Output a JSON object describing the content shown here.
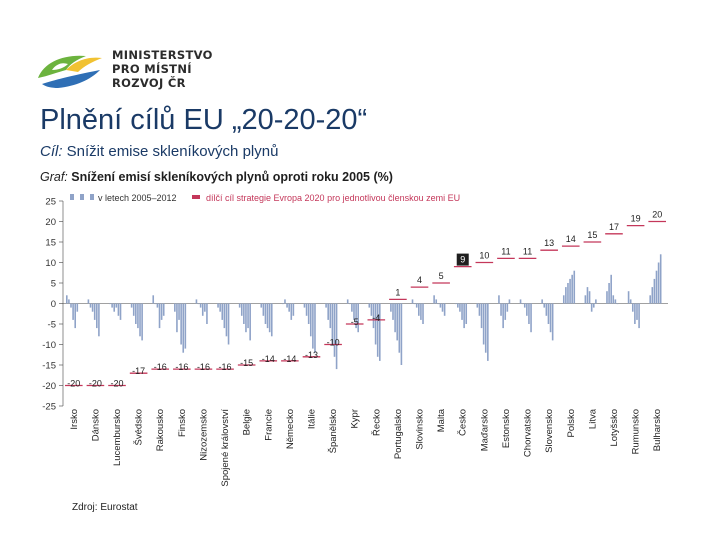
{
  "header": {
    "ministry_lines": [
      "MINISTERSTVO",
      "PRO MÍSTNÍ",
      "ROZVOJ ČR"
    ],
    "title": "Plnění cílů EU „20-20-20“",
    "subtitle_label": "Cíl:",
    "subtitle_text": " Snížit emise skleníkových plynů",
    "graf_label": "Graf:",
    "graf_text": " Snížení emisí skleníkových plynů oproti roku 2005 (%)"
  },
  "footer": {
    "source": "Zdroj: Eurostat"
  },
  "colors": {
    "title": "#1a3a66",
    "bars_actual": "#8fa3c8",
    "bars_target": "#c4375a",
    "axis": "#444444"
  },
  "chart_data": {
    "type": "bar",
    "legend": [
      {
        "name": "v letech 2005–2012"
      },
      {
        "name": "dílčí cíl strategie Evropa 2020 pro jednotlivou členskou zemi EU"
      }
    ],
    "ylim": [
      -25,
      25
    ],
    "yticks": [
      25,
      20,
      15,
      10,
      5,
      0,
      -5,
      -10,
      -15,
      -20,
      -25
    ],
    "categories": [
      "Irsko",
      "Dánsko",
      "Lucembursko",
      "Švédsko",
      "Rakousko",
      "Finsko",
      "Nizozemsko",
      "Spojené království",
      "Belgie",
      "Francie",
      "Německo",
      "Itálie",
      "Španělsko",
      "Kypr",
      "Řecko",
      "Portugalsko",
      "Slovinsko",
      "Malta",
      "Česko",
      "Maďarsko",
      "Estonsko",
      "Chorvatsko",
      "Slovensko",
      "Polsko",
      "Litva",
      "Lotyšsko",
      "Rumunsko",
      "Bulharsko"
    ],
    "series": [
      {
        "name": "dílčí cíl strategie Evropa 2020 pro jednotlivou členskou zemi EU",
        "values": [
          -20,
          -20,
          -20,
          -17,
          -16,
          -16,
          -16,
          -16,
          -15,
          -14,
          -14,
          -13,
          -10,
          -5,
          -4,
          1,
          4,
          5,
          9,
          10,
          11,
          11,
          13,
          14,
          15,
          17,
          19,
          20
        ],
        "labels": [
          "-20",
          "-20",
          "-20",
          "-17",
          "-16",
          "-16",
          "-16",
          "-16",
          "-15",
          "-14",
          "-14",
          "-13",
          "-10",
          "-5",
          "-4",
          "1",
          "4",
          "5",
          "9",
          "10",
          "11",
          "11",
          "13",
          "14",
          "15",
          "17",
          "19",
          "20"
        ]
      },
      {
        "name": "v letech 2005–2012",
        "values": [
          [
            2,
            1,
            -1,
            -4,
            -6,
            -2
          ],
          [
            1,
            -1,
            -2,
            -4,
            -6,
            -8
          ],
          [
            0,
            -1,
            -2,
            -1,
            -3,
            -4
          ],
          [
            -1,
            -3,
            -5,
            -6,
            -8,
            -9
          ],
          [
            2,
            0,
            -1,
            -6,
            -4,
            -3
          ],
          [
            -2,
            -7,
            -4,
            -10,
            -12,
            -11
          ],
          [
            1,
            0,
            -1,
            -3,
            -2,
            -5
          ],
          [
            -1,
            -2,
            -4,
            -6,
            -8,
            -10
          ],
          [
            -1,
            -3,
            -5,
            -7,
            -6,
            -9
          ],
          [
            -1,
            -3,
            -5,
            -6,
            -7,
            -8
          ],
          [
            0,
            1,
            -1,
            -2,
            -4,
            -3
          ],
          [
            -1,
            -3,
            -5,
            -8,
            -11,
            -12
          ],
          [
            -1,
            -4,
            -6,
            -10,
            -13,
            -16
          ],
          [
            1,
            0,
            -2,
            -4,
            -6,
            -7
          ],
          [
            -1,
            -3,
            -6,
            -10,
            -13,
            -14
          ],
          [
            -2,
            -4,
            -7,
            -9,
            -12,
            -15
          ],
          [
            1,
            0,
            -1,
            -3,
            -4,
            -5
          ],
          [
            2,
            1,
            0,
            -1,
            -2,
            -3
          ],
          [
            0,
            -1,
            -2,
            -4,
            -6,
            -5
          ],
          [
            -1,
            -3,
            -6,
            -10,
            -12,
            -14
          ],
          [
            2,
            -3,
            -6,
            -4,
            -2,
            1
          ],
          [
            1,
            0,
            -1,
            -3,
            -5,
            -7
          ],
          [
            1,
            -1,
            -3,
            -5,
            -7,
            -9
          ],
          [
            2,
            4,
            5,
            6,
            7,
            8
          ],
          [
            2,
            4,
            3,
            -2,
            -1,
            1
          ],
          [
            3,
            5,
            7,
            2,
            1,
            0
          ],
          [
            3,
            1,
            -2,
            -5,
            -4,
            -6
          ],
          [
            2,
            4,
            6,
            8,
            10,
            12
          ]
        ]
      }
    ]
  }
}
